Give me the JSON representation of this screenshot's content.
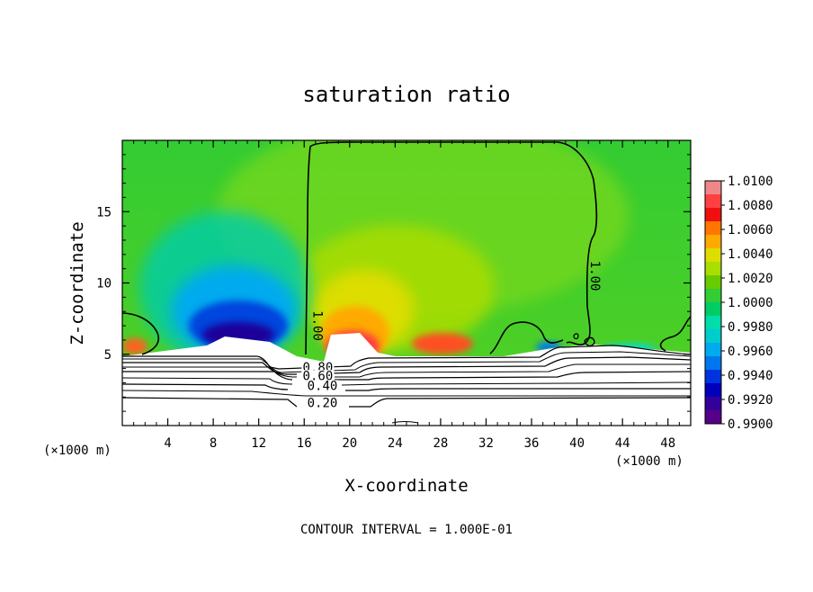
{
  "chart_data": {
    "type": "heatmap",
    "title": "saturation ratio",
    "xlabel": "X-coordinate",
    "ylabel": "Z-coordinate",
    "x_unit_label": "(×1000 m)",
    "z_unit_label": "(×1000 m)",
    "xlim": [
      0,
      50
    ],
    "ylim": [
      0,
      20
    ],
    "x_ticks": [
      4,
      8,
      12,
      16,
      20,
      24,
      28,
      32,
      36,
      40,
      44,
      48
    ],
    "y_ticks": [
      5,
      10,
      15
    ],
    "colorbar": {
      "labels": [
        "1.0100",
        "1.0080",
        "1.0060",
        "1.0040",
        "1.0020",
        "1.0000",
        "0.9980",
        "0.9960",
        "0.9940",
        "0.9920",
        "0.9900"
      ],
      "values": [
        1.01,
        1.008,
        1.006,
        1.004,
        1.002,
        1.0,
        0.998,
        0.996,
        0.994,
        0.992,
        0.99
      ],
      "colors": [
        "#ee8888",
        "#ff4040",
        "#ee1010",
        "#ff7700",
        "#ffaa00",
        "#dddd00",
        "#aadd00",
        "#66cc00",
        "#33cc33",
        "#00cc66",
        "#00ddaa",
        "#00cccc",
        "#00aaee",
        "#0077ee",
        "#0033dd",
        "#0000bb",
        "#330099",
        "#550088"
      ]
    },
    "contour_labels": [
      {
        "text": "1.00",
        "x": 16.8,
        "z": 7.0
      },
      {
        "text": "1.00",
        "x": 41.2,
        "z": 10.5
      },
      {
        "text": "0.80",
        "x": 17.2,
        "z": 3.8
      },
      {
        "text": "0.60",
        "x": 17.2,
        "z": 3.2
      },
      {
        "text": "0.40",
        "x": 17.6,
        "z": 2.5
      },
      {
        "text": "0.20",
        "x": 17.6,
        "z": 1.3
      }
    ],
    "contour_interval_text": "CONTOUR INTERVAL = 1.000E-01"
  }
}
